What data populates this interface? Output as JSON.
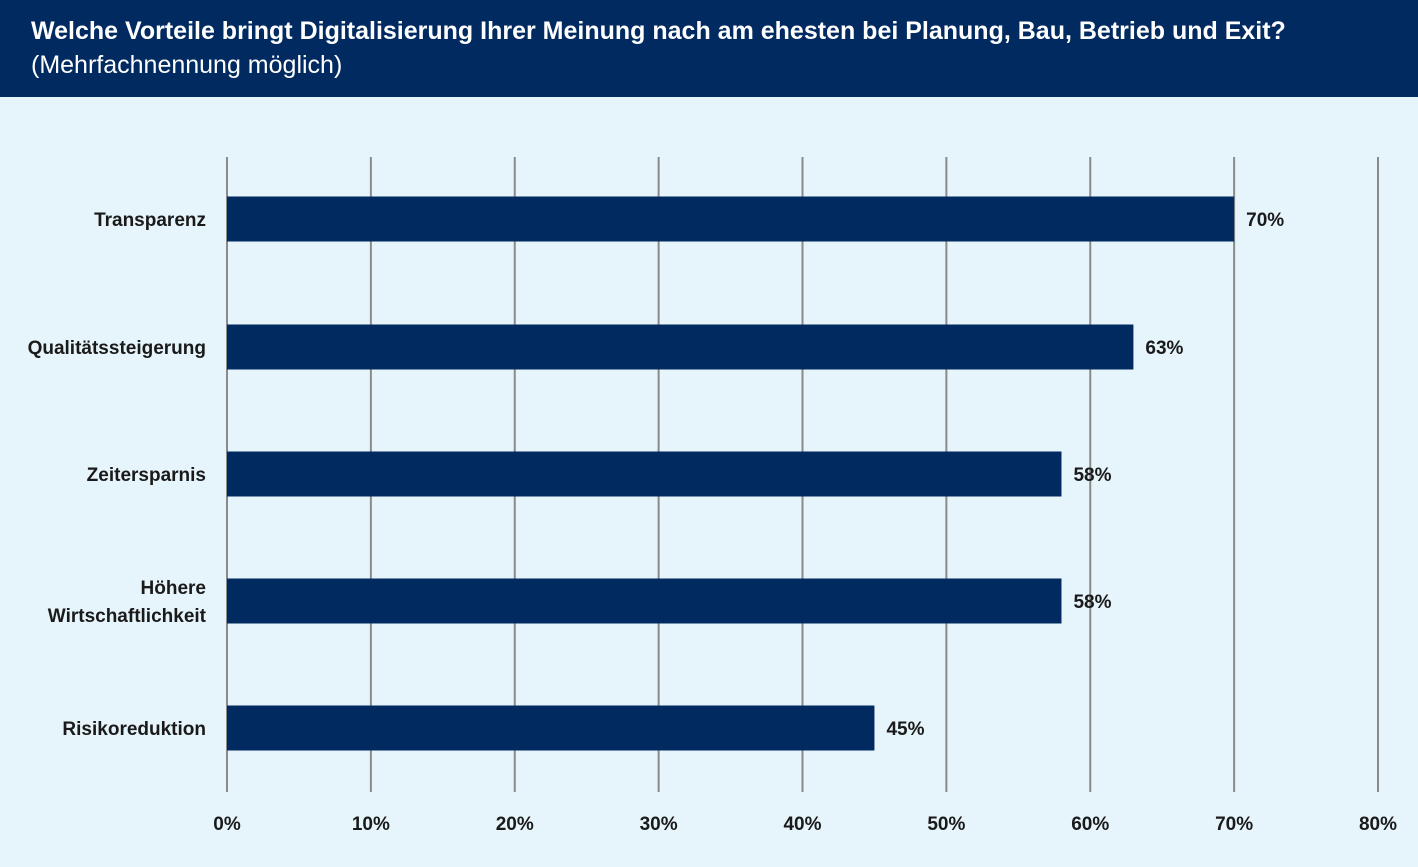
{
  "header": {
    "title": "Welche Vorteile bringt Digitalisierung Ihrer Meinung nach am ehesten bei Planung, Bau, Betrieb und Exit?",
    "subtitle": "(Mehrfachnennung möglich)"
  },
  "colors": {
    "bar": "#002a60",
    "background": "#e6f4fb",
    "header_bg": "#002a60",
    "grid": "#8a8a8a"
  },
  "chart_data": {
    "type": "bar",
    "orientation": "horizontal",
    "title": "Welche Vorteile bringt Digitalisierung Ihrer Meinung nach am ehesten bei Planung, Bau, Betrieb und Exit?",
    "subtitle": "(Mehrfachnennung möglich)",
    "categories": [
      [
        "Transparenz"
      ],
      [
        "Qualitätssteigerung"
      ],
      [
        "Zeitersparnis"
      ],
      [
        "Höhere",
        "Wirtschaftlichkeit"
      ],
      [
        "Risikoreduktion"
      ]
    ],
    "values": [
      70,
      63,
      58,
      58,
      45
    ],
    "value_labels": [
      "70%",
      "63%",
      "58%",
      "58%",
      "45%"
    ],
    "xlim": [
      0,
      80
    ],
    "x_ticks": [
      0,
      10,
      20,
      30,
      40,
      50,
      60,
      70,
      80
    ],
    "x_tick_labels": [
      "0%",
      "10%",
      "20%",
      "30%",
      "40%",
      "50%",
      "60%",
      "70%",
      "80%"
    ],
    "xlabel": "",
    "ylabel": "",
    "grid": "vertical",
    "legend": "none"
  }
}
